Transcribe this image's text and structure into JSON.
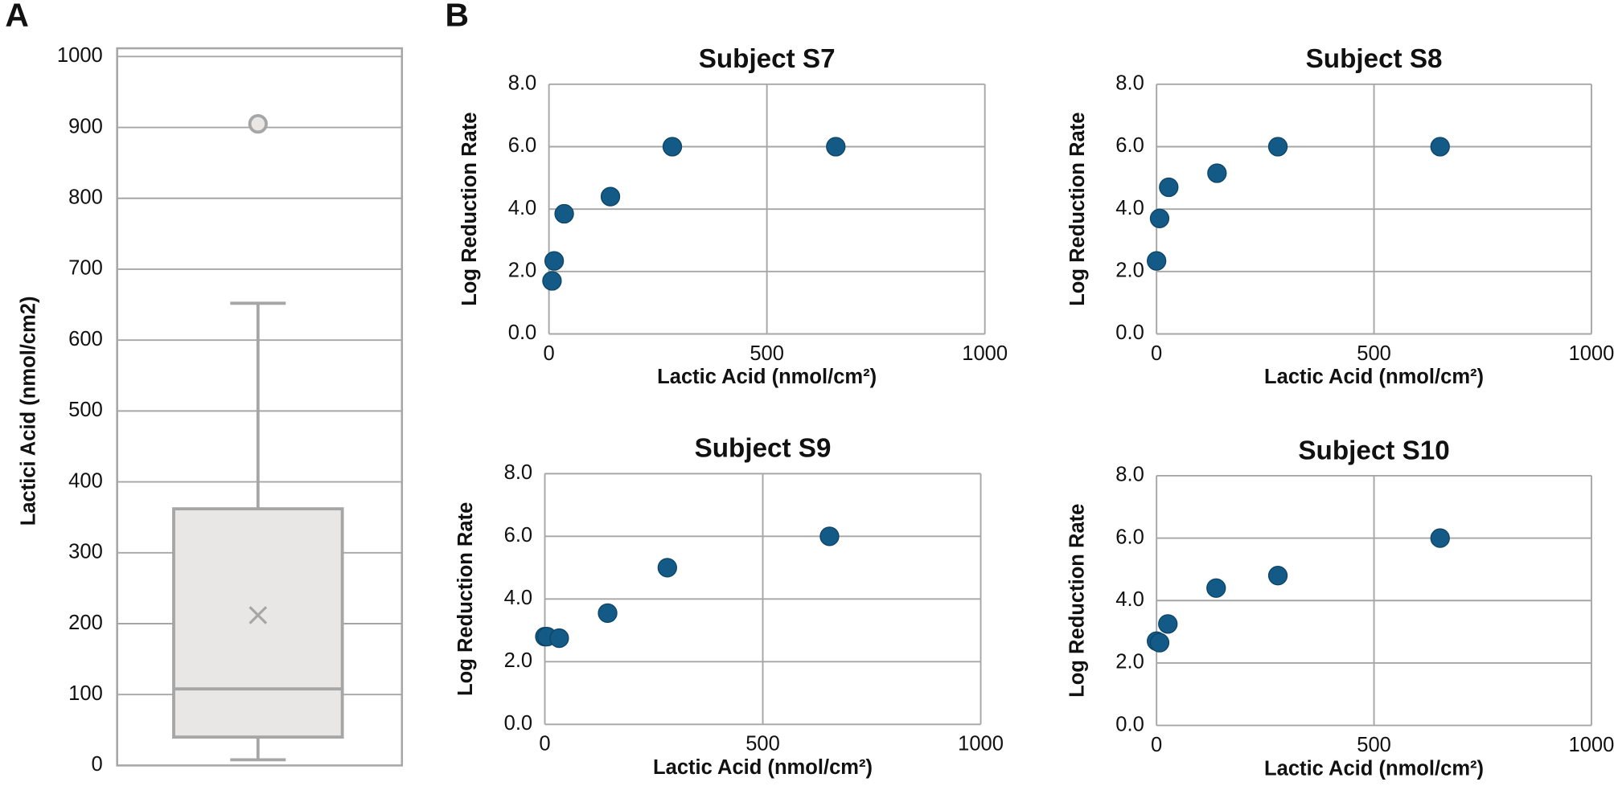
{
  "panel_labels": [
    "A",
    "B"
  ],
  "chart_data": [
    {
      "type": "box",
      "ylabel": "Lactici Acid (nmol/cm2)",
      "ylim": [
        0,
        1000
      ],
      "yticks": [
        0,
        100,
        200,
        300,
        400,
        500,
        600,
        700,
        800,
        900,
        1000
      ],
      "grid": true,
      "min": 8,
      "q1": 40,
      "median": 108,
      "q3": 362,
      "max": 652,
      "mean": 212,
      "outliers": [
        905
      ],
      "color": "#e8e7e6",
      "edge_color": "#a6a6a6"
    },
    {
      "type": "scatter",
      "title": "Subject S7",
      "xlabel": "Lactic Acid (nmol/cm²)",
      "ylabel": "Log Reduction Rate",
      "x": [
        7,
        12,
        35,
        141,
        283,
        658
      ],
      "values": [
        1.7,
        2.34,
        3.85,
        4.4,
        6.0,
        6.0
      ],
      "color": "#135a86",
      "xlim": [
        0,
        1000
      ],
      "xticks": [
        0,
        500,
        1000
      ],
      "ylim": [
        0,
        8
      ],
      "yticks": [
        {
          "value": 0,
          "label": "0.0"
        },
        {
          "value": 2,
          "label": "2.0"
        },
        {
          "value": 4,
          "label": "4.0"
        },
        {
          "value": 6,
          "label": "6.0"
        },
        {
          "value": 8,
          "label": "8.0"
        }
      ],
      "grid": true
    },
    {
      "type": "scatter",
      "title": "Subject S8",
      "xlabel": "Lactic Acid (nmol/cm²)",
      "ylabel": "Log Reduction Rate",
      "x": [
        0,
        7,
        28,
        139,
        279,
        652
      ],
      "values": [
        2.34,
        3.7,
        4.7,
        5.15,
        6.0,
        6.0
      ],
      "color": "#135a86",
      "xlim": [
        0,
        1000
      ],
      "xticks": [
        0,
        500,
        1000
      ],
      "ylim": [
        0,
        8
      ],
      "yticks": [
        {
          "value": 0,
          "label": "0.0"
        },
        {
          "value": 2,
          "label": "2.0"
        },
        {
          "value": 4,
          "label": "4.0"
        },
        {
          "value": 6,
          "label": "6.0"
        },
        {
          "value": 8,
          "label": "8.0"
        }
      ],
      "grid": true
    },
    {
      "type": "scatter",
      "title": "Subject S9",
      "xlabel": "Lactic Acid (nmol/cm²)",
      "ylabel": "Log Reduction Rate",
      "x": [
        0,
        5,
        33,
        144,
        281,
        653
      ],
      "values": [
        2.8,
        2.8,
        2.75,
        3.55,
        5.0,
        6.0
      ],
      "color": "#135a86",
      "xlim": [
        0,
        1000
      ],
      "xticks": [
        0,
        500,
        1000
      ],
      "ylim": [
        0,
        8
      ],
      "yticks": [
        {
          "value": 0,
          "label": "0.0"
        },
        {
          "value": 2,
          "label": "2.0"
        },
        {
          "value": 4,
          "label": "4.0"
        },
        {
          "value": 6,
          "label": "6.0"
        },
        {
          "value": 8,
          "label": "8.0"
        }
      ],
      "grid": true
    },
    {
      "type": "scatter",
      "title": "Subject S10",
      "xlabel": "Lactic Acid (nmol/cm²)",
      "ylabel": "Log Reduction Rate",
      "x": [
        0,
        7,
        26,
        137,
        279,
        652
      ],
      "values": [
        2.7,
        2.65,
        3.25,
        4.4,
        4.8,
        6.0
      ],
      "color": "#135a86",
      "xlim": [
        0,
        1000
      ],
      "xticks": [
        0,
        500,
        1000
      ],
      "ylim": [
        0,
        8
      ],
      "yticks": [
        {
          "value": 0,
          "label": "0.0"
        },
        {
          "value": 2,
          "label": "2.0"
        },
        {
          "value": 4,
          "label": "4.0"
        },
        {
          "value": 6,
          "label": "6.0"
        },
        {
          "value": 8,
          "label": "8.0"
        }
      ],
      "grid": true
    }
  ]
}
